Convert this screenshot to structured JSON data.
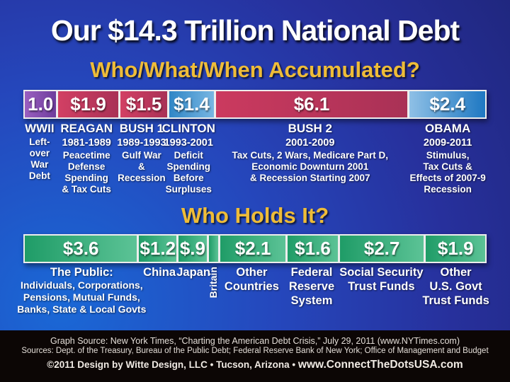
{
  "title": "Our $14.3 Trillion National Debt",
  "colors": {
    "background_top": "#27309c",
    "background_bottom_left": "#1a68d6",
    "heading_yellow": "#eebc38",
    "bar_border_white": "#ededed",
    "footer_black": "#0c0605"
  },
  "accumulated": {
    "heading": "Who/What/When Accumulated?",
    "segments": [
      {
        "value": "1.0",
        "weight": 1.0,
        "color_from": "#9a5fc0",
        "color_to": "#6e3c9c",
        "name": "WWII",
        "years": "",
        "desc": "Left-\nover\nWar\nDebt"
      },
      {
        "value": "$1.9",
        "weight": 1.9,
        "color_from": "#d24064",
        "color_to": "#a93156",
        "name": "REAGAN",
        "years": "1981-1989",
        "desc": "Peacetime\nDefense\nSpending\n& Tax Cuts"
      },
      {
        "value": "$1.5",
        "weight": 1.5,
        "color_from": "#d24064",
        "color_to": "#a93156",
        "name": "BUSH 1",
        "years": "1989-1993",
        "desc": "Gulf War\n&\nRecession"
      },
      {
        "value": "$1.4",
        "weight": 1.4,
        "color_from": "#2f86c6",
        "color_to": "#78b6e2",
        "name": "CLINTON",
        "years": "1993-2001",
        "desc": "Deficit\nSpending\nBefore\nSurpluses"
      },
      {
        "value": "$6.1",
        "weight": 6.1,
        "color_from": "#cb3a5f",
        "color_to": "#a93156",
        "name": "BUSH 2",
        "years": "2001-2009",
        "desc": "Tax Cuts, 2 Wars, Medicare Part D,\nEconomic Downturn 2001\n& Recession Starting 2007"
      },
      {
        "value": "$2.4",
        "weight": 2.4,
        "color_from": "#8fc0e6",
        "color_to": "#1e78c2",
        "name": "OBAMA",
        "years": "2009-2011",
        "desc": "Stimulus,\nTax Cuts &\nEffects of 2007-9\nRecession"
      }
    ]
  },
  "holders": {
    "heading": "Who Holds It?",
    "segments": [
      {
        "value": "$3.6",
        "weight": 3.6,
        "color_from": "#1f9c67",
        "color_to": "#5cc396",
        "name": "The Public:",
        "desc": "Individuals, Corporations,\nPensions, Mutual Funds,\nBanks, State & Local Govts"
      },
      {
        "value": "$1.2",
        "weight": 1.2,
        "color_from": "#1f9c67",
        "color_to": "#5cc396",
        "name": "China",
        "desc": ""
      },
      {
        "value": "$.9",
        "weight": 0.9,
        "color_from": "#1f9c67",
        "color_to": "#5cc396",
        "name": "Japan",
        "desc": ""
      },
      {
        "value": "",
        "weight": 0.3,
        "color_from": "#1f9c67",
        "color_to": "#5cc396",
        "name": "Britain",
        "desc": ""
      },
      {
        "value": "$2.1",
        "weight": 2.1,
        "color_from": "#1f9c67",
        "color_to": "#5cc396",
        "name": "Other\nCountries",
        "desc": ""
      },
      {
        "value": "$1.6",
        "weight": 1.6,
        "color_from": "#1f9c67",
        "color_to": "#5cc396",
        "name": "Federal\nReserve\nSystem",
        "desc": ""
      },
      {
        "value": "$2.7",
        "weight": 2.7,
        "color_from": "#1f9c67",
        "color_to": "#5cc396",
        "name": "Social Security\nTrust Funds",
        "desc": ""
      },
      {
        "value": "$1.9",
        "weight": 1.9,
        "color_from": "#1f9c67",
        "color_to": "#5cc396",
        "name": "Other\nU.S. Govt\nTrust Funds",
        "desc": ""
      }
    ]
  },
  "footer": {
    "graph_source": "Graph Source: New York Times, “Charting the American Debt Crisis,” July 29, 2011 (www.NYTimes.com)",
    "sources": "Sources: Dept. of the Treasury, Bureau of the Public Debt; Federal Reserve Bank of New York; Office of Management and Budget",
    "credit": "©2011 Design by Witte Design, LLC • Tucson, Arizona •",
    "website": "www.ConnectTheDotsUSA.com"
  },
  "chart_data": [
    {
      "type": "bar",
      "variant": "horizontal-stacked",
      "title": "Who/What/When Accumulated?",
      "unit": "trillions of USD",
      "total": 14.3,
      "categories": [
        "WWII Left-over War Debt",
        "Reagan 1981-1989",
        "Bush 1 1989-1993",
        "Clinton 1993-2001",
        "Bush 2 2001-2009",
        "Obama 2009-2011"
      ],
      "values": [
        1.0,
        1.9,
        1.5,
        1.4,
        6.1,
        2.4
      ],
      "legend_position": "none",
      "grid": false
    },
    {
      "type": "bar",
      "variant": "horizontal-stacked",
      "title": "Who Holds It?",
      "unit": "trillions of USD",
      "total": 14.3,
      "categories": [
        "The Public (Individuals, Corporations, Pensions, Mutual Funds, Banks, State & Local Govts)",
        "China",
        "Japan",
        "Britain",
        "Other Countries",
        "Federal Reserve System",
        "Social Security Trust Funds",
        "Other U.S. Govt Trust Funds"
      ],
      "values": [
        3.6,
        1.2,
        0.9,
        0.3,
        2.1,
        1.6,
        2.7,
        1.9
      ],
      "legend_position": "none",
      "grid": false,
      "note": "Britain segment unlabeled; value estimated from width"
    }
  ]
}
